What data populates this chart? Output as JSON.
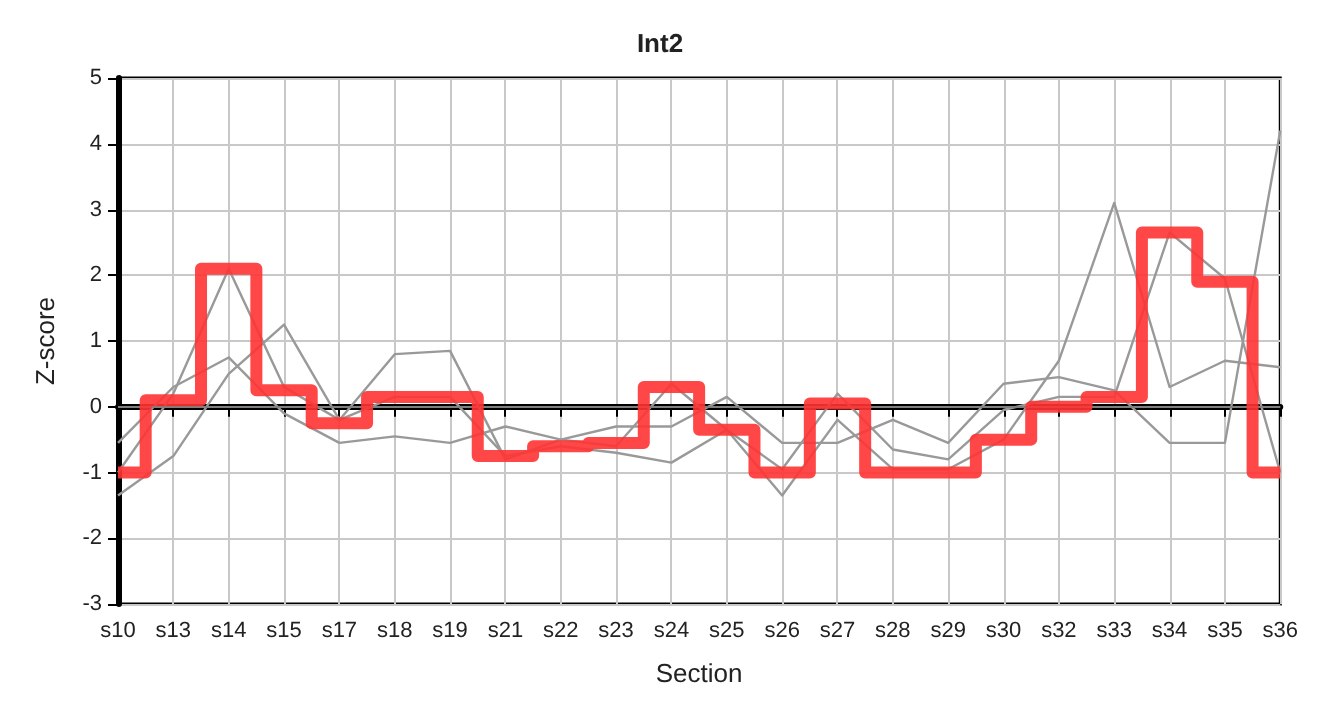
{
  "chart_data": {
    "type": "line",
    "title": "Int2",
    "xlabel": "Section",
    "ylabel": "Z-score",
    "categories": [
      "s10",
      "s13",
      "s14",
      "s15",
      "s17",
      "s18",
      "s19",
      "s21",
      "s22",
      "s23",
      "s24",
      "s25",
      "s26",
      "s27",
      "s28",
      "s29",
      "s30",
      "s32",
      "s33",
      "s34",
      "s35",
      "s36"
    ],
    "series": [
      {
        "color": "#999999",
        "values": [
          -1.0,
          0.2,
          2.1,
          0.3,
          -0.2,
          0.15,
          0.15,
          -0.75,
          -0.6,
          -0.7,
          -0.85,
          -0.35,
          -1.35,
          -0.2,
          -0.95,
          -0.95,
          -0.5,
          0.7,
          3.1,
          0.3,
          0.7,
          0.6
        ]
      },
      {
        "color": "#999999",
        "values": [
          -1.35,
          -0.75,
          0.5,
          1.25,
          -0.2,
          0.8,
          0.85,
          -0.8,
          -0.5,
          -0.3,
          -0.3,
          0.15,
          -0.55,
          -0.55,
          -0.2,
          -0.55,
          0.35,
          0.45,
          0.25,
          -0.55,
          -0.55,
          4.2
        ]
      },
      {
        "color": "#999999",
        "values": [
          -0.55,
          0.3,
          0.75,
          -0.1,
          -0.55,
          -0.45,
          -0.55,
          -0.3,
          -0.5,
          -0.6,
          0.35,
          -0.35,
          -0.95,
          0.2,
          -0.65,
          -0.8,
          -0.05,
          0.15,
          0.15,
          2.65,
          1.95,
          -1.0
        ]
      },
      {
        "type": "step",
        "color": "#ff3333",
        "values": [
          -1.0,
          0.1,
          2.1,
          0.25,
          -0.25,
          0.15,
          0.15,
          -0.75,
          -0.6,
          -0.55,
          0.3,
          -0.35,
          -1.0,
          0.05,
          -1.0,
          -1.0,
          -0.5,
          0.0,
          0.15,
          2.65,
          1.9,
          -1.0
        ]
      }
    ],
    "ylim": [
      -3,
      5
    ],
    "yticks": [
      -3,
      -2,
      -1,
      0,
      1,
      2,
      3,
      4,
      5
    ],
    "grid": true,
    "marker": "none",
    "ref_lines": [
      {
        "axis": "y",
        "value": 0,
        "color": "#808080"
      }
    ]
  }
}
